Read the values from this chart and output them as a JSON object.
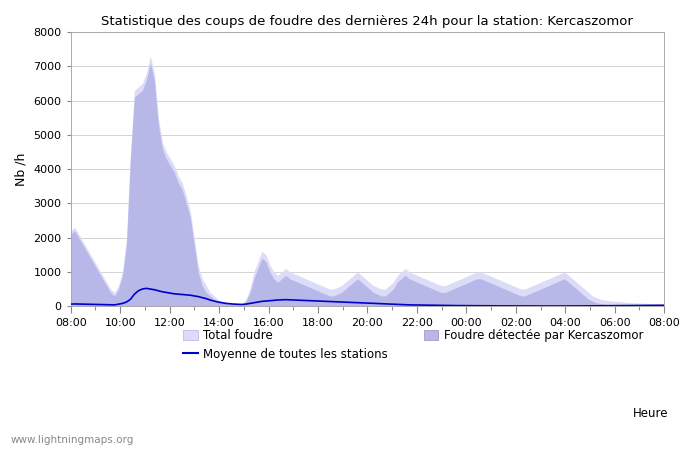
{
  "title": "Statistique des coups de foudre des dernières 24h pour la station: Kercaszomor",
  "ylabel": "Nb /h",
  "xlabel": "Heure",
  "watermark": "www.lightningmaps.org",
  "legend_items": [
    {
      "label": "Total foudre",
      "color": "#d8d8f5",
      "type": "fill"
    },
    {
      "label": "Moyenne de toutes les stations",
      "color": "#0000cc",
      "type": "line"
    },
    {
      "label": "Foudre détectée par Kercaszomor",
      "color": "#b8b8e8",
      "type": "fill"
    }
  ],
  "xticks": [
    "08:00",
    "10:00",
    "12:00",
    "14:00",
    "16:00",
    "18:00",
    "20:00",
    "22:00",
    "00:00",
    "02:00",
    "04:00",
    "06:00",
    "08:00"
  ],
  "ylim": [
    0,
    8000
  ],
  "yticks": [
    0,
    1000,
    2000,
    3000,
    4000,
    5000,
    6000,
    7000,
    8000
  ],
  "background_color": "#ffffff",
  "plot_bg_color": "#ffffff",
  "grid_color": "#cccccc",
  "total_foudre": [
    2200,
    2300,
    2100,
    1900,
    1700,
    1500,
    1300,
    1100,
    900,
    700,
    500,
    400,
    600,
    1000,
    2000,
    4500,
    6300,
    6400,
    6500,
    6800,
    7300,
    6800,
    5500,
    4800,
    4500,
    4300,
    4100,
    3800,
    3600,
    3200,
    2800,
    2000,
    1200,
    800,
    600,
    400,
    300,
    200,
    150,
    120,
    100,
    80,
    70,
    60,
    200,
    500,
    1000,
    1300,
    1600,
    1500,
    1200,
    1000,
    900,
    1000,
    1100,
    1000,
    950,
    900,
    850,
    800,
    750,
    700,
    650,
    600,
    550,
    500,
    500,
    550,
    600,
    700,
    800,
    900,
    1000,
    900,
    800,
    700,
    600,
    550,
    500,
    500,
    600,
    700,
    900,
    1000,
    1100,
    1000,
    950,
    900,
    850,
    800,
    750,
    700,
    650,
    600,
    600,
    650,
    700,
    750,
    800,
    850,
    900,
    950,
    1000,
    1000,
    950,
    900,
    850,
    800,
    750,
    700,
    650,
    600,
    550,
    500,
    500,
    550,
    600,
    650,
    700,
    750,
    800,
    850,
    900,
    950,
    1000,
    900,
    800,
    700,
    600,
    500,
    400,
    300,
    250,
    200,
    180,
    160,
    150,
    140,
    130,
    120,
    110,
    100,
    95,
    90,
    85,
    80,
    75,
    70,
    65,
    60
  ],
  "kercaszomor": [
    2100,
    2200,
    2000,
    1800,
    1600,
    1400,
    1200,
    1000,
    800,
    600,
    400,
    300,
    500,
    900,
    1800,
    4300,
    6100,
    6200,
    6300,
    6600,
    7100,
    6600,
    5300,
    4600,
    4300,
    4100,
    3900,
    3600,
    3400,
    3000,
    2600,
    1800,
    1000,
    600,
    400,
    300,
    200,
    150,
    100,
    80,
    70,
    60,
    50,
    40,
    150,
    400,
    800,
    1100,
    1400,
    1300,
    1000,
    800,
    700,
    800,
    900,
    800,
    750,
    700,
    650,
    600,
    550,
    500,
    450,
    400,
    350,
    300,
    300,
    350,
    400,
    500,
    600,
    700,
    800,
    700,
    600,
    500,
    400,
    350,
    300,
    300,
    400,
    500,
    700,
    800,
    900,
    800,
    750,
    700,
    650,
    600,
    550,
    500,
    450,
    400,
    400,
    450,
    500,
    550,
    600,
    650,
    700,
    750,
    800,
    800,
    750,
    700,
    650,
    600,
    550,
    500,
    450,
    400,
    350,
    300,
    300,
    350,
    400,
    450,
    500,
    550,
    600,
    650,
    700,
    750,
    800,
    700,
    600,
    500,
    400,
    300,
    200,
    150,
    100,
    80,
    60,
    50,
    40,
    30,
    25,
    20,
    18,
    15,
    13,
    12,
    11,
    10,
    9,
    8,
    7,
    6
  ],
  "moyenne": [
    60,
    65,
    62,
    58,
    55,
    52,
    50,
    48,
    45,
    42,
    40,
    38,
    60,
    80,
    120,
    200,
    350,
    450,
    500,
    520,
    500,
    480,
    450,
    420,
    400,
    380,
    360,
    350,
    340,
    330,
    320,
    300,
    280,
    250,
    220,
    180,
    150,
    120,
    100,
    80,
    70,
    60,
    55,
    50,
    60,
    80,
    100,
    120,
    140,
    150,
    160,
    170,
    180,
    185,
    190,
    185,
    180,
    175,
    170,
    165,
    160,
    155,
    150,
    145,
    140,
    135,
    130,
    125,
    120,
    115,
    110,
    105,
    100,
    95,
    90,
    85,
    80,
    75,
    70,
    65,
    60,
    55,
    50,
    45,
    40,
    38,
    36,
    34,
    32,
    30,
    28,
    26,
    24,
    22,
    20,
    19,
    18,
    17,
    16,
    15,
    14,
    13,
    12,
    11,
    10,
    10,
    10,
    10,
    9,
    9,
    8,
    8,
    8,
    7,
    7,
    6,
    6,
    6,
    5,
    5,
    5,
    5,
    5,
    5,
    6,
    6,
    7,
    7,
    8,
    8,
    9,
    9,
    10,
    10,
    11,
    12,
    13,
    14,
    15,
    16,
    17,
    18,
    19,
    20,
    21,
    22,
    23,
    24,
    25,
    26
  ]
}
